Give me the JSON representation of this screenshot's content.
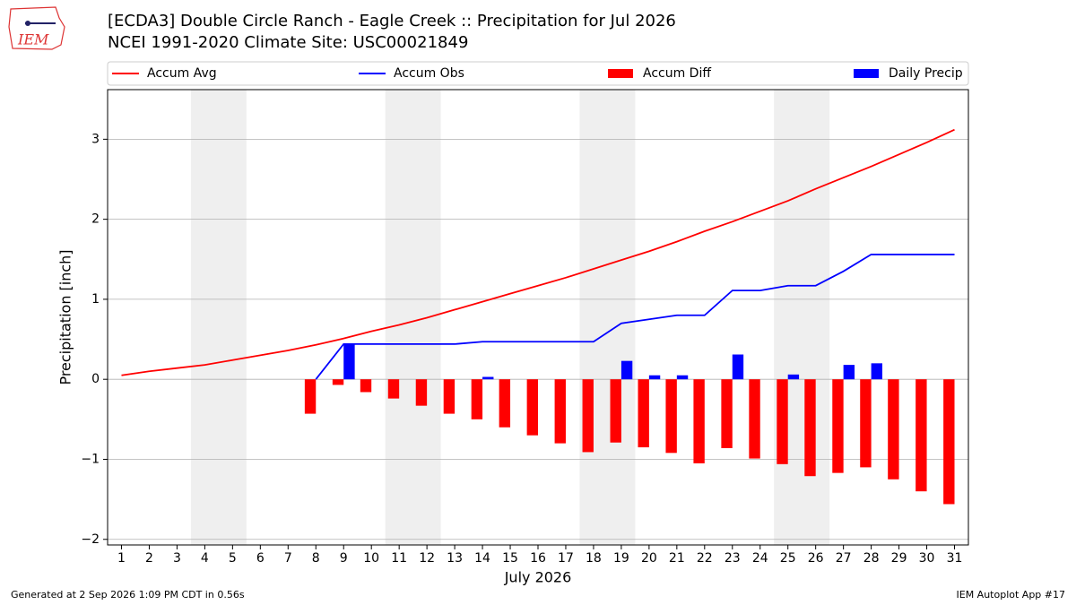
{
  "chart_data": {
    "type": "combo",
    "title": "[ECDA3] Double Circle Ranch - Eagle Creek :: Precipitation for Jul 2026",
    "subtitle": "NCEI 1991-2020 Climate Site: USC00021849",
    "xlabel": "July 2026",
    "ylabel": "Precipitation [inch]",
    "x": [
      1,
      2,
      3,
      4,
      5,
      6,
      7,
      8,
      9,
      10,
      11,
      12,
      13,
      14,
      15,
      16,
      17,
      18,
      19,
      20,
      21,
      22,
      23,
      24,
      25,
      26,
      27,
      28,
      29,
      30,
      31
    ],
    "xlim": [
      0.5,
      31.5
    ],
    "xticks": [
      1,
      2,
      3,
      4,
      5,
      6,
      7,
      8,
      9,
      10,
      11,
      12,
      13,
      14,
      15,
      16,
      17,
      18,
      19,
      20,
      21,
      22,
      23,
      24,
      25,
      26,
      27,
      28,
      29,
      30,
      31
    ],
    "ylim": [
      -2.07,
      3.62
    ],
    "yticks": [
      {
        "value": -2,
        "label": "−2"
      },
      {
        "value": -1,
        "label": "−1"
      },
      0,
      1,
      2,
      3
    ],
    "grid": true,
    "shaded_ranges": [
      [
        3.5,
        5.5
      ],
      [
        10.5,
        12.5
      ],
      [
        17.5,
        19.5
      ],
      [
        24.5,
        26.5
      ]
    ],
    "legend": "top",
    "series": [
      {
        "name": "Accum Avg",
        "kind": "line",
        "color": "#ff0000",
        "values": [
          0.05,
          0.1,
          0.14,
          0.18,
          0.24,
          0.3,
          0.36,
          0.43,
          0.51,
          0.6,
          0.68,
          0.77,
          0.87,
          0.97,
          1.07,
          1.17,
          1.27,
          1.38,
          1.49,
          1.6,
          1.72,
          1.85,
          1.97,
          2.1,
          2.23,
          2.38,
          2.52,
          2.66,
          2.81,
          2.96,
          3.12
        ]
      },
      {
        "name": "Accum Obs",
        "kind": "line",
        "color": "#0000ff",
        "values": [
          null,
          null,
          null,
          null,
          null,
          null,
          null,
          0,
          0.44,
          0.44,
          0.44,
          0.44,
          0.44,
          0.47,
          0.47,
          0.47,
          0.47,
          0.47,
          0.7,
          0.75,
          0.8,
          0.8,
          1.11,
          1.11,
          1.17,
          1.17,
          1.35,
          1.56,
          1.56,
          1.56,
          1.56
        ]
      },
      {
        "name": "Accum Diff",
        "kind": "bar",
        "color": "#ff0000",
        "values": [
          null,
          null,
          null,
          null,
          null,
          null,
          null,
          -0.43,
          -0.07,
          -0.16,
          -0.24,
          -0.33,
          -0.43,
          -0.5,
          -0.6,
          -0.7,
          -0.8,
          -0.91,
          -0.79,
          -0.85,
          -0.92,
          -1.05,
          -0.86,
          -0.99,
          -1.06,
          -1.21,
          -1.17,
          -1.1,
          -1.25,
          -1.4,
          -1.56
        ]
      },
      {
        "name": "Daily Precip",
        "kind": "bar",
        "color": "#0000ff",
        "values": [
          null,
          null,
          null,
          null,
          null,
          null,
          null,
          0,
          0.44,
          0,
          0,
          0,
          0,
          0.03,
          0,
          0,
          0,
          0,
          0.23,
          0.05,
          0.05,
          0,
          0.31,
          0,
          0.06,
          0,
          0.18,
          0.2,
          0,
          0,
          0
        ]
      }
    ]
  },
  "logo_text": "IEM",
  "footer_left": "Generated at 2 Sep 2026 1:09 PM CDT in 0.56s",
  "footer_right": "IEM Autoplot App #17"
}
